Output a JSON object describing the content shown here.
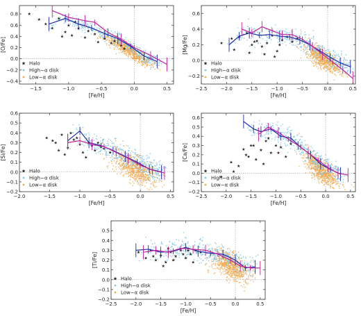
{
  "colors": {
    "halo": "#c0143c",
    "high_alpha_disk": "#7ec8e8",
    "low_alpha_disk": "#f6a94c",
    "trend_high": "#1c2aa8",
    "trend_low": "#c0209a"
  },
  "legend": {
    "halo": "Halo",
    "high": "High−α disk",
    "low": "Low−α disk"
  },
  "chart_data": [
    {
      "type": "scatter",
      "panel": "O",
      "xlabel": "[Fe/H]",
      "ylabel": "[O/Fe]",
      "xlim": [
        -1.75,
        0.6
      ],
      "ylim": [
        -0.45,
        0.95
      ],
      "xticks": [
        -1.5,
        -1.0,
        -0.5,
        0.0,
        0.5
      ],
      "xtick_labels": [
        "−1.5",
        "−1.0",
        "−0.5",
        "0.0",
        "0.5"
      ],
      "yticks": [
        -0.4,
        -0.2,
        0.0,
        0.2,
        0.4,
        0.6,
        0.8
      ],
      "ytick_labels": [
        "−0.4",
        "−0.2",
        "0.0",
        "0.2",
        "0.4",
        "0.6",
        "0.8"
      ],
      "legend_position": "bottom-left",
      "series": [
        {
          "name": "High−α disk trend",
          "x": [
            -1.3,
            -1.05,
            -0.85,
            -0.65,
            -0.45,
            -0.25,
            -0.05,
            0.15,
            0.35
          ],
          "y": [
            0.62,
            0.72,
            0.62,
            0.55,
            0.45,
            0.36,
            0.22,
            0.05,
            -0.05
          ]
        },
        {
          "name": "Low−α disk trend",
          "x": [
            -1.25,
            -1.0,
            -0.75,
            -0.6,
            -0.4,
            -0.2,
            0.0,
            0.25,
            0.5
          ],
          "y": [
            0.86,
            0.74,
            0.68,
            0.65,
            0.47,
            0.35,
            0.2,
            0.06,
            -0.1
          ]
        }
      ],
      "halo_points": {
        "x": [
          -1.6,
          -1.45,
          -1.35,
          -1.25,
          -1.15,
          -1.05,
          -1.0,
          -0.95,
          -0.85,
          -0.75,
          -0.7,
          -0.6,
          -0.55,
          -0.45,
          -0.35,
          -0.3,
          -0.2,
          -0.15,
          -1.1,
          -0.9
        ],
        "y": [
          0.8,
          0.7,
          0.62,
          0.55,
          0.72,
          0.48,
          0.6,
          0.42,
          0.55,
          0.38,
          0.5,
          0.44,
          0.3,
          0.36,
          0.28,
          0.32,
          0.24,
          0.18,
          0.4,
          0.66
        ]
      }
    },
    {
      "type": "scatter",
      "panel": "Mg",
      "xlabel": "[Fe/H]",
      "ylabel": "[Mg/Fe]",
      "xlim": [
        -2.5,
        0.55
      ],
      "ylim": [
        -0.3,
        0.7
      ],
      "xticks": [
        -2.5,
        -2.0,
        -1.5,
        -1.0,
        -0.5,
        0.0,
        0.5
      ],
      "xtick_labels": [
        "−2.5",
        "−2.0",
        "−1.5",
        "−1.0",
        "−0.5",
        "0.0",
        "0.5"
      ],
      "yticks": [
        -0.2,
        0.0,
        0.2,
        0.4,
        0.6
      ],
      "ytick_labels": [
        "−0.2",
        "0.0",
        "0.2",
        "0.4",
        "0.6"
      ],
      "legend_position": "bottom-left",
      "series": [
        {
          "name": "High−α disk trend",
          "x": [
            -1.95,
            -1.75,
            -1.55,
            -1.35,
            -1.15,
            -0.95,
            -0.75,
            -0.55,
            -0.35,
            -0.15,
            0.05,
            0.25,
            0.45
          ],
          "y": [
            0.2,
            0.31,
            0.35,
            0.32,
            0.33,
            0.31,
            0.3,
            0.26,
            0.2,
            0.12,
            0.04,
            -0.03,
            -0.08
          ]
        },
        {
          "name": "Low−α disk trend",
          "x": [
            -1.7,
            -1.5,
            -1.3,
            -1.1,
            -0.9,
            -0.7,
            -0.5,
            -0.3,
            -0.1,
            0.1,
            0.3,
            0.5
          ],
          "y": [
            0.4,
            0.35,
            0.43,
            0.38,
            0.33,
            0.33,
            0.27,
            0.18,
            0.08,
            -0.02,
            -0.12,
            -0.23
          ]
        }
      ],
      "halo_points": {
        "x": [
          -2.1,
          -1.9,
          -1.75,
          -1.6,
          -1.5,
          -1.4,
          -1.3,
          -1.2,
          -1.1,
          -1.0,
          -0.9,
          -0.8,
          -1.55,
          -1.25,
          -0.95,
          -0.7,
          -0.6,
          -1.85,
          -1.45,
          -1.05
        ],
        "y": [
          0.22,
          0.28,
          0.3,
          0.35,
          0.2,
          0.25,
          0.18,
          0.22,
          0.32,
          0.12,
          0.26,
          0.3,
          0.1,
          0.08,
          0.2,
          0.24,
          0.28,
          0.14,
          0.24,
          0.05
        ]
      }
    },
    {
      "type": "scatter",
      "panel": "Si",
      "xlabel": "[Fe/H]",
      "ylabel": "[Si/Fe]",
      "xlim": [
        -2.0,
        0.55
      ],
      "ylim": [
        -0.2,
        0.6
      ],
      "xticks": [
        -2.0,
        -1.5,
        -1.0,
        -0.5,
        0.0,
        0.5
      ],
      "xtick_labels": [
        "−2.0",
        "−1.5",
        "−1.0",
        "−0.5",
        "0.0",
        "0.5"
      ],
      "yticks": [
        -0.2,
        -0.1,
        0.0,
        0.1,
        0.2,
        0.3,
        0.4,
        0.5,
        0.6
      ],
      "ytick_labels": [
        "−0.2",
        "−0.1",
        "0.0",
        "0.1",
        "0.2",
        "0.3",
        "0.4",
        "0.5",
        "0.6"
      ],
      "legend_position": "bottom-left",
      "series": [
        {
          "name": "High−α disk trend",
          "x": [
            -1.2,
            -1.0,
            -0.85,
            -0.65,
            -0.45,
            -0.25,
            -0.05,
            0.15,
            0.35
          ],
          "y": [
            0.32,
            0.42,
            0.3,
            0.27,
            0.22,
            0.16,
            0.1,
            0.03,
            0.0
          ]
        },
        {
          "name": "Low−α disk trend",
          "x": [
            -1.2,
            -1.0,
            -0.8,
            -0.6,
            -0.4,
            -0.2,
            0.0,
            0.2,
            0.4
          ],
          "y": [
            0.3,
            0.32,
            0.28,
            0.26,
            0.2,
            0.14,
            0.07,
            0.02,
            -0.01
          ]
        }
      ],
      "halo_points": {
        "x": [
          -1.55,
          -1.4,
          -1.3,
          -1.2,
          -1.1,
          -1.0,
          -0.95,
          -0.85,
          -0.75,
          -0.65,
          -1.25,
          -1.05,
          -0.9,
          -0.7,
          -1.35,
          -0.6,
          -0.5,
          -1.15,
          -0.8,
          -1.45
        ],
        "y": [
          0.35,
          0.3,
          0.38,
          0.25,
          0.33,
          0.28,
          0.2,
          0.3,
          0.22,
          0.26,
          0.18,
          0.35,
          0.15,
          0.3,
          0.22,
          0.24,
          0.2,
          0.4,
          0.27,
          0.32
        ]
      }
    },
    {
      "type": "scatter",
      "panel": "Ca",
      "xlabel": "[Fe/H]",
      "ylabel": "[Ca/Fe]",
      "xlim": [
        -2.5,
        0.6
      ],
      "ylim": [
        -0.2,
        0.65
      ],
      "xticks": [
        -2.5,
        -2.0,
        -1.5,
        -1.0,
        -0.5,
        0.0,
        0.5
      ],
      "xtick_labels": [
        "−2.5",
        "−2.0",
        "−1.5",
        "−1.0",
        "−0.5",
        "0.0",
        "0.5"
      ],
      "yticks": [
        -0.2,
        -0.1,
        0.0,
        0.1,
        0.2,
        0.3,
        0.4,
        0.5,
        0.6
      ],
      "ytick_labels": [
        "−0.2",
        "−0.1",
        "0.0",
        "0.1",
        "0.2",
        "0.3",
        "0.4",
        "0.5",
        "0.6"
      ],
      "legend_position": "bottom-left",
      "series": [
        {
          "name": "High−α disk trend",
          "x": [
            -1.65,
            -1.45,
            -1.3,
            -1.1,
            -0.9,
            -0.7,
            -0.5,
            -0.3,
            -0.1,
            0.1,
            0.3
          ],
          "y": [
            0.56,
            0.48,
            0.45,
            0.48,
            0.4,
            0.38,
            0.28,
            0.2,
            0.1,
            0.04,
            -0.01
          ]
        },
        {
          "name": "Low−α disk trend",
          "x": [
            -1.35,
            -1.15,
            -0.95,
            -0.75,
            -0.55,
            -0.35,
            -0.15,
            0.05,
            0.25,
            0.45
          ],
          "y": [
            0.42,
            0.5,
            0.44,
            0.37,
            0.3,
            0.22,
            0.14,
            0.06,
            0.0,
            -0.02
          ]
        }
      ],
      "halo_points": {
        "x": [
          -2.1,
          -1.9,
          -1.75,
          -1.6,
          -1.5,
          -1.4,
          -1.3,
          -1.2,
          -1.1,
          -1.0,
          -0.9,
          -0.8,
          -0.7,
          -1.85,
          -1.55,
          -1.25,
          -0.95,
          -1.65,
          -1.15,
          -1.45
        ],
        "y": [
          -0.04,
          0.12,
          0.08,
          0.2,
          0.3,
          0.15,
          0.25,
          0.35,
          0.22,
          0.3,
          0.28,
          0.18,
          0.32,
          0.02,
          0.18,
          0.1,
          0.22,
          0.26,
          0.38,
          0.3
        ]
      }
    },
    {
      "type": "scatter",
      "panel": "Ti",
      "xlabel": "[Fe/H]",
      "ylabel": "[Ti/Fe]",
      "xlim": [
        -2.5,
        0.6
      ],
      "ylim": [
        -0.2,
        0.6
      ],
      "xticks": [
        -2.5,
        -2.0,
        -1.5,
        -1.0,
        -0.5,
        0.0,
        0.5
      ],
      "xtick_labels": [
        "−2.5",
        "−2.0",
        "−1.5",
        "−1.0",
        "−0.5",
        "0.0",
        "0.5"
      ],
      "yticks": [
        -0.2,
        -0.1,
        0.0,
        0.1,
        0.2,
        0.3,
        0.4,
        0.5
      ],
      "ytick_labels": [
        "−0.2",
        "−0.1",
        "0.0",
        "0.1",
        "0.2",
        "0.3",
        "0.4",
        "0.5"
      ],
      "legend_position": "bottom-left",
      "series": [
        {
          "name": "High−α disk trend",
          "x": [
            -2.0,
            -1.75,
            -1.5,
            -1.25,
            -1.0,
            -0.75,
            -0.5,
            -0.25,
            0.0,
            0.2,
            0.4
          ],
          "y": [
            0.3,
            0.31,
            0.28,
            0.29,
            0.33,
            0.29,
            0.27,
            0.26,
            0.2,
            0.12,
            0.13
          ]
        },
        {
          "name": "Low−α disk trend",
          "x": [
            -1.85,
            -1.6,
            -1.35,
            -1.1,
            -0.85,
            -0.6,
            -0.35,
            -0.1,
            0.1,
            0.3,
            0.5
          ],
          "y": [
            0.28,
            0.3,
            0.28,
            0.32,
            0.31,
            0.3,
            0.26,
            0.2,
            0.14,
            0.12,
            0.12
          ]
        }
      ],
      "halo_points": {
        "x": [
          -1.95,
          -1.8,
          -1.7,
          -1.6,
          -1.5,
          -1.4,
          -1.3,
          -1.2,
          -1.1,
          -1.0,
          -0.9,
          -0.8,
          -0.7,
          -1.45,
          -1.25,
          -1.05,
          -0.85,
          -1.65,
          -1.35,
          -0.95
        ],
        "y": [
          0.28,
          0.22,
          0.3,
          0.2,
          0.25,
          0.18,
          0.28,
          0.24,
          0.3,
          0.22,
          0.26,
          0.3,
          0.28,
          0.14,
          0.2,
          0.26,
          0.18,
          0.24,
          0.32,
          0.3
        ]
      }
    }
  ]
}
